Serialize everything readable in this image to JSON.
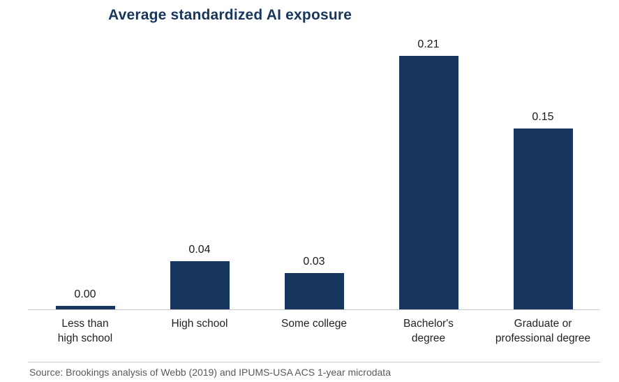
{
  "title": "Average standardized AI exposure",
  "source": "Source: Brookings analysis of Webb (2019) and IPUMS-USA ACS 1-year microdata",
  "colors": {
    "bar": "#17365d",
    "title": "#17365d",
    "axis": "#c9c9c9",
    "source_text": "#58595b"
  },
  "chart_data": {
    "type": "bar",
    "title": "Average standardized AI exposure",
    "categories": [
      "Less than\nhigh school",
      "High school",
      "Some college",
      "Bachelor's\ndegree",
      "Graduate or\nprofessional degree"
    ],
    "values": [
      0.0,
      0.04,
      0.03,
      0.21,
      0.15
    ],
    "value_labels": [
      "0.00",
      "0.04",
      "0.03",
      "0.21",
      "0.15"
    ],
    "xlabel": "",
    "ylabel": "",
    "ylim": [
      0,
      0.22
    ],
    "grid": false,
    "legend": false,
    "source_note": "Source: Brookings analysis of Webb (2019) and IPUMS-USA ACS 1-year microdata"
  }
}
